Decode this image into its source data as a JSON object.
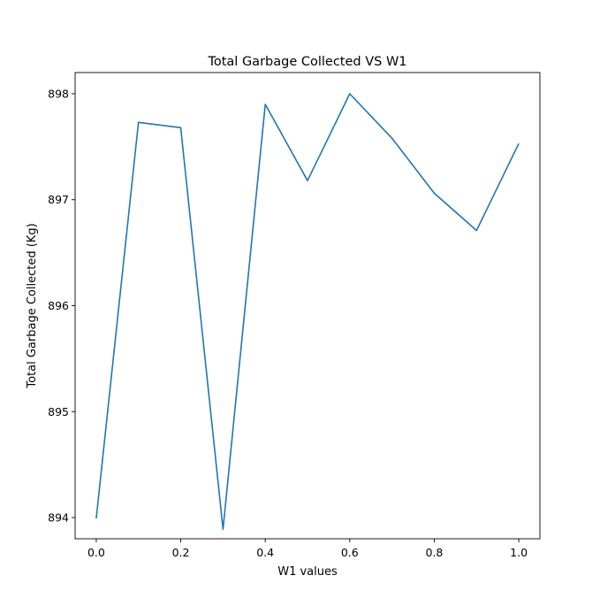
{
  "chart_data": {
    "type": "line",
    "title": "Total Garbage Collected VS W1",
    "xlabel": "W1 values",
    "ylabel": "Total Garbage Collected (Kg)",
    "xlim": [
      -0.05,
      1.05
    ],
    "ylim": [
      893.8,
      898.2
    ],
    "xticks": [
      0.0,
      0.2,
      0.4,
      0.6,
      0.8,
      1.0
    ],
    "xtick_labels": [
      "0.0",
      "0.2",
      "0.4",
      "0.6",
      "0.8",
      "1.0"
    ],
    "yticks": [
      894,
      895,
      896,
      897,
      898
    ],
    "ytick_labels": [
      "894",
      "895",
      "896",
      "897",
      "898"
    ],
    "grid": false,
    "line_color": "#1f77b4",
    "series": [
      {
        "x": [
          0.0,
          0.1,
          0.2,
          0.3,
          0.4,
          0.5,
          0.6,
          0.7,
          0.8,
          0.9,
          1.0
        ],
        "values": [
          893.99,
          897.73,
          897.68,
          893.89,
          897.9,
          897.18,
          898.0,
          897.58,
          897.06,
          896.71,
          897.53
        ]
      }
    ]
  }
}
